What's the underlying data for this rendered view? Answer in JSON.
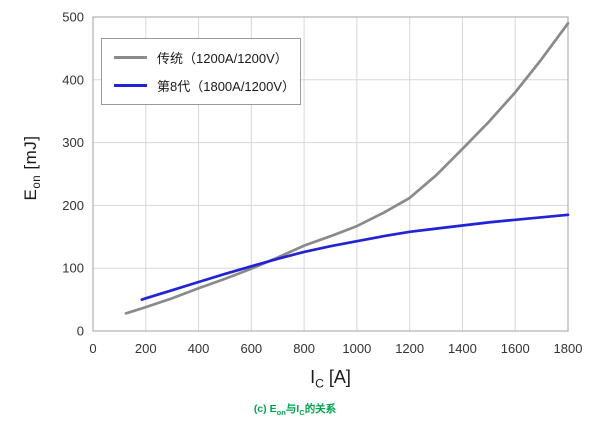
{
  "figure": {
    "background": "#ffffff"
  },
  "axes": {
    "y_label": {
      "main": "E",
      "sub": "on",
      "unit": " [mJ]"
    },
    "x_label": {
      "main": "I",
      "sub": "C",
      "unit": " [A]"
    }
  },
  "caption": {
    "p1": "(c) E",
    "s1": "on",
    "p2": "与I",
    "s2": "C",
    "p3": "的关系",
    "color": "#00a551"
  },
  "chart_data": {
    "type": "line",
    "title": "",
    "xlabel": "I_C [A]",
    "ylabel": "E_on [mJ]",
    "xlim": [
      0,
      1800
    ],
    "ylim": [
      0,
      500
    ],
    "x_ticks": [
      0,
      200,
      400,
      600,
      800,
      1000,
      1200,
      1400,
      1600,
      1800
    ],
    "y_ticks": [
      0,
      100,
      200,
      300,
      400,
      500
    ],
    "grid": true,
    "legend_position": "upper-left",
    "grid_color": "#d8d8d8",
    "border_color": "#b0b0b0",
    "tick_color": "#333333",
    "series": [
      {
        "name": "传统（1200A/1200V）",
        "color": "#8a8a8a",
        "points": [
          [
            125,
            28
          ],
          [
            200,
            38
          ],
          [
            300,
            52
          ],
          [
            400,
            68
          ],
          [
            500,
            83
          ],
          [
            600,
            99
          ],
          [
            700,
            117
          ],
          [
            800,
            136
          ],
          [
            900,
            151
          ],
          [
            1000,
            167
          ],
          [
            1100,
            188
          ],
          [
            1200,
            212
          ],
          [
            1300,
            248
          ],
          [
            1400,
            290
          ],
          [
            1500,
            333
          ],
          [
            1600,
            380
          ],
          [
            1700,
            433
          ],
          [
            1800,
            490
          ]
        ]
      },
      {
        "name": "第8代（1800A/1200V）",
        "color": "#2323d6",
        "points": [
          [
            185,
            50
          ],
          [
            200,
            52
          ],
          [
            300,
            65
          ],
          [
            400,
            78
          ],
          [
            500,
            91
          ],
          [
            600,
            103
          ],
          [
            700,
            115
          ],
          [
            800,
            126
          ],
          [
            900,
            135
          ],
          [
            1000,
            143
          ],
          [
            1100,
            151
          ],
          [
            1200,
            158
          ],
          [
            1300,
            163
          ],
          [
            1400,
            168
          ],
          [
            1500,
            173
          ],
          [
            1600,
            177
          ],
          [
            1700,
            181
          ],
          [
            1800,
            185
          ]
        ]
      }
    ]
  }
}
